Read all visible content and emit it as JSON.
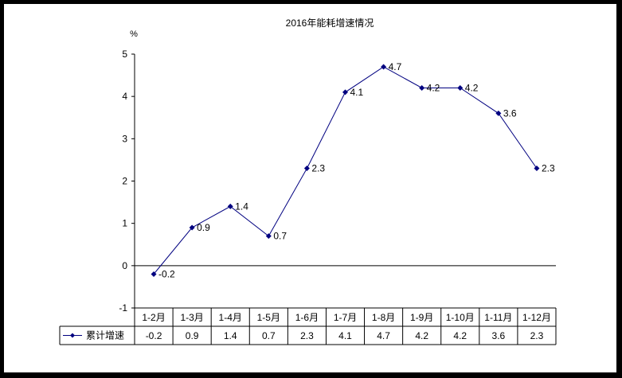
{
  "chart_data": {
    "type": "line",
    "title": "2016年能耗增速情况",
    "ylabel": "%",
    "xlabel": "",
    "categories": [
      "1-2月",
      "1-3月",
      "1-4月",
      "1-5月",
      "1-6月",
      "1-7月",
      "1-8月",
      "1-9月",
      "1-10月",
      "1-11月",
      "1-12月"
    ],
    "series": [
      {
        "name": "累计增速",
        "values": [
          -0.2,
          0.9,
          1.4,
          0.7,
          2.3,
          4.1,
          4.7,
          4.2,
          4.2,
          3.6,
          2.3
        ]
      }
    ],
    "ylim": [
      -1,
      5
    ],
    "yticks": [
      "5",
      "4",
      "3",
      "2",
      "1",
      "0",
      "-1"
    ],
    "grid": false,
    "legend": "data-table-below",
    "data_table": true,
    "table_values": [
      "-0.2",
      "0.9",
      "1.4",
      "0.7",
      "2.3",
      "4.1",
      "4.7",
      "4.2",
      "4.2",
      "3.6",
      "2.3"
    ],
    "point_labels": [
      "-0.2",
      "0.9",
      "1.4",
      "0.7",
      "2.3",
      "4.1",
      "4.7",
      "4.2",
      "4.2",
      "3.6",
      "2.3"
    ],
    "colors": {
      "series": "#000080",
      "axis": "#000000",
      "background": "#ffffff",
      "frame": "#000000"
    }
  }
}
